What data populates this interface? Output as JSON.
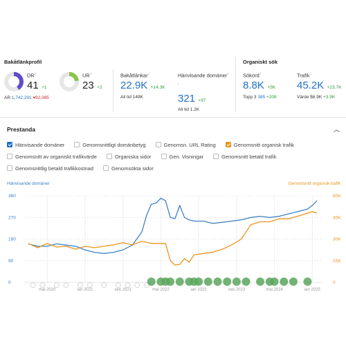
{
  "backlink_profile": {
    "title": "Bakåtlänkprofil",
    "dr": {
      "label": "DR",
      "info": "i",
      "value": "41",
      "delta": "+1",
      "ar_label": "AR",
      "ar_value": "1,742,291",
      "ar_delta": "▾92,385",
      "fill": 0.41,
      "color": "#5b4fc9"
    },
    "ur": {
      "label": "UR",
      "info": "i",
      "value": "23",
      "delta": "+2",
      "fill": 0.23,
      "color": "#8bc34a"
    },
    "backlinks": {
      "label": "Bakåtlänkar",
      "info": "i",
      "value": "22.9K",
      "delta": "+14.3K",
      "all_time": "All tid  149K"
    },
    "ref_domains": {
      "label": "Hänvisande domäner",
      "info": "i",
      "value": "321",
      "delta": "+97",
      "all_time": "All tid  1.2K"
    }
  },
  "organic": {
    "title": "Organiskt sök",
    "keywords": {
      "label": "Sökord",
      "info": "i",
      "value": "8.8K",
      "delta": "+5K",
      "top3_label": "Topp 3",
      "top3_value": "385",
      "top3_delta": "+208"
    },
    "traffic": {
      "label": "Trafik",
      "info": "i",
      "value": "45.2K",
      "delta": "+23.7K",
      "value_label": "Värde",
      "value_amount": "$6.9K",
      "value_delta": "+3.9K"
    }
  },
  "performance": {
    "title": "Prestanda",
    "collapse_icon": "chevron-up-icon",
    "checkboxes": [
      [
        {
          "label": "Hänvisande domäner",
          "checked": true,
          "color": "blue"
        },
        {
          "label": "Genomsnittligt domänbetyg",
          "checked": false
        },
        {
          "label": "Genomsn. URL Rating",
          "checked": false
        },
        {
          "label": "Genomsnitt organisk trafik",
          "checked": true,
          "color": "orange"
        }
      ],
      [
        {
          "label": "Genomsnitt av organiskt trafikvärde",
          "checked": false
        },
        {
          "label": "Organiska sidor",
          "checked": false
        },
        {
          "label": "Gen. Visningar",
          "checked": false
        },
        {
          "label": "Genomsnitt betald trafik",
          "checked": false
        }
      ],
      [
        {
          "label": "Genomsnittlig betald trafikkostnad",
          "checked": false
        },
        {
          "label": "Genomsökta sidor",
          "checked": false
        }
      ]
    ]
  },
  "chart_data": {
    "type": "line",
    "left_axis_label": "Hänvisande domäner",
    "right_axis_label": "Genomsnitt organisk trafik",
    "left_ticks": [
      "360",
      "270",
      "180",
      "90",
      "0"
    ],
    "right_ticks": [
      "60K",
      "45K",
      "30K",
      "15K",
      "0"
    ],
    "x_ticks": [
      "maj 2020",
      "jan 2021",
      "sep 2021",
      "maj 2022",
      "jan 2023",
      "sep 2023",
      "maj 2024",
      "jan 2025"
    ],
    "left_range": [
      0,
      360
    ],
    "right_range": [
      0,
      60000
    ],
    "x_range": [
      "2019-12",
      "2025-03"
    ],
    "grid": true,
    "series": [
      {
        "name": "Hänvisande domäner",
        "axis": "left",
        "color": "#3b82c4",
        "x": [
          "2020-01",
          "2020-03",
          "2020-05",
          "2020-07",
          "2020-09",
          "2020-11",
          "2021-01",
          "2021-03",
          "2021-05",
          "2021-07",
          "2021-09",
          "2021-11",
          "2022-01",
          "2022-02",
          "2022-03",
          "2022-04",
          "2022-05",
          "2022-06",
          "2022-07",
          "2022-08",
          "2022-09",
          "2022-10",
          "2022-11",
          "2022-12",
          "2023-02",
          "2023-04",
          "2023-06",
          "2023-08",
          "2023-10",
          "2023-12",
          "2024-02",
          "2024-04",
          "2024-06",
          "2024-08",
          "2024-10",
          "2024-12",
          "2025-01",
          "2025-02"
        ],
        "values": [
          160,
          150,
          150,
          160,
          155,
          150,
          135,
          125,
          120,
          125,
          135,
          155,
          210,
          280,
          325,
          330,
          350,
          340,
          270,
          265,
          320,
          270,
          260,
          255,
          255,
          245,
          250,
          255,
          260,
          270,
          275,
          270,
          275,
          285,
          295,
          305,
          320,
          340
        ]
      },
      {
        "name": "Genomsnitt organisk trafik",
        "axis": "right",
        "color": "#e8941c",
        "x": [
          "2020-01",
          "2020-03",
          "2020-05",
          "2020-07",
          "2020-09",
          "2020-11",
          "2021-01",
          "2021-03",
          "2021-05",
          "2021-07",
          "2021-09",
          "2021-11",
          "2022-01",
          "2022-03",
          "2022-05",
          "2022-06",
          "2022-07",
          "2022-08",
          "2022-09",
          "2022-10",
          "2022-11",
          "2022-12",
          "2023-02",
          "2023-04",
          "2023-06",
          "2023-08",
          "2023-10",
          "2023-12",
          "2024-02",
          "2024-04",
          "2024-06",
          "2024-08",
          "2024-10",
          "2024-12",
          "2025-01",
          "2025-02"
        ],
        "values": [
          27000,
          24000,
          27000,
          24500,
          25000,
          23000,
          25000,
          24000,
          25000,
          26000,
          27500,
          26000,
          28500,
          27000,
          27000,
          27000,
          15000,
          12000,
          12500,
          16500,
          14000,
          19000,
          20000,
          21000,
          23000,
          26000,
          30000,
          40000,
          42000,
          42000,
          44000,
          44000,
          46000,
          48000,
          49000,
          48000
        ]
      }
    ]
  }
}
